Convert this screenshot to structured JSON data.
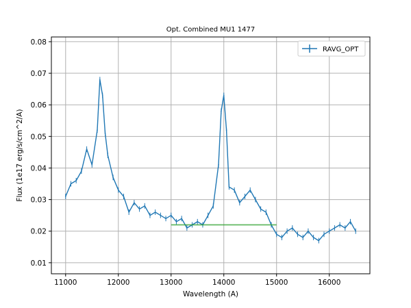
{
  "chart_data": {
    "type": "line",
    "title": "Opt. Combined MU1 1477",
    "xlabel": "Wavelength (A)",
    "ylabel": "Flux (1e17 erg/s/cm^2/A)",
    "xlim": [
      10730,
      16770
    ],
    "ylim": [
      0.0065,
      0.0815
    ],
    "xticks": [
      11000,
      12000,
      13000,
      14000,
      15000,
      16000
    ],
    "xtick_labels": [
      "11000",
      "12000",
      "13000",
      "14000",
      "15000",
      "16000"
    ],
    "yticks": [
      0.01,
      0.02,
      0.03,
      0.04,
      0.05,
      0.06,
      0.07,
      0.08
    ],
    "ytick_labels": [
      "0.01",
      "0.02",
      "0.03",
      "0.04",
      "0.05",
      "0.06",
      "0.07",
      "0.08"
    ],
    "grid": true,
    "legend_position": "top-right",
    "series": [
      {
        "name": "RAVG_OPT",
        "color": "#1f77b4",
        "style": "errorbar-line",
        "x": [
          11000,
          11100,
          11200,
          11300,
          11400,
          11500,
          11600,
          11650,
          11700,
          11750,
          11800,
          11900,
          12000,
          12100,
          12200,
          12300,
          12400,
          12500,
          12600,
          12700,
          12800,
          12900,
          13000,
          13100,
          13200,
          13300,
          13400,
          13500,
          13600,
          13700,
          13800,
          13900,
          13950,
          14000,
          14050,
          14100,
          14200,
          14300,
          14400,
          14500,
          14600,
          14700,
          14800,
          14900,
          15000,
          15100,
          15200,
          15300,
          15400,
          15500,
          15600,
          15700,
          15800,
          15900,
          16000,
          16100,
          16200,
          16300,
          16400,
          16500
        ],
        "y": [
          0.031,
          0.035,
          0.036,
          0.039,
          0.046,
          0.041,
          0.052,
          0.068,
          0.063,
          0.051,
          0.044,
          0.037,
          0.033,
          0.031,
          0.026,
          0.029,
          0.027,
          0.028,
          0.025,
          0.026,
          0.025,
          0.024,
          0.025,
          0.023,
          0.024,
          0.021,
          0.022,
          0.023,
          0.022,
          0.025,
          0.028,
          0.041,
          0.058,
          0.063,
          0.052,
          0.034,
          0.033,
          0.029,
          0.031,
          0.033,
          0.03,
          0.027,
          0.026,
          0.022,
          0.019,
          0.018,
          0.02,
          0.021,
          0.019,
          0.018,
          0.02,
          0.018,
          0.017,
          0.019,
          0.02,
          0.021,
          0.022,
          0.021,
          0.023,
          0.02
        ]
      },
      {
        "name": "",
        "color": "#2ca02c",
        "style": "line",
        "x": [
          13000,
          15000
        ],
        "y": [
          0.022,
          0.022
        ]
      }
    ]
  }
}
